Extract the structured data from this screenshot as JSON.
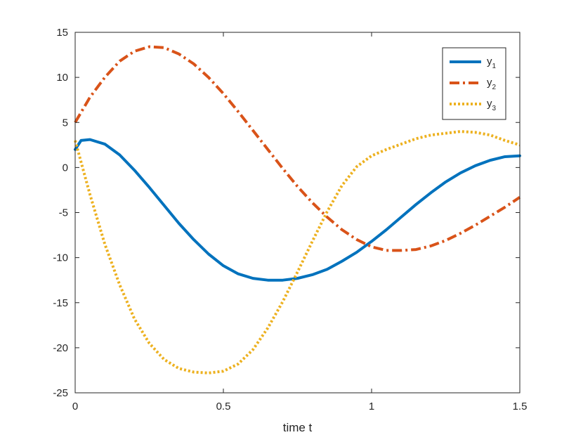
{
  "chart_data": {
    "type": "line",
    "xlabel": "time t",
    "ylabel": "",
    "title": "",
    "xlim": [
      0,
      1.5
    ],
    "ylim": [
      -25,
      15
    ],
    "xticks": [
      0,
      0.5,
      1,
      1.5
    ],
    "xtick_labels": [
      "0",
      "0.5",
      "1",
      "1.5"
    ],
    "yticks": [
      -25,
      -20,
      -15,
      -10,
      -5,
      0,
      5,
      10,
      15
    ],
    "ytick_labels": [
      "-25",
      "-20",
      "-15",
      "-10",
      "-5",
      "0",
      "5",
      "10",
      "15"
    ],
    "grid": false,
    "legend_position": "top-right",
    "series": [
      {
        "name": "y",
        "subscript": "1",
        "color": "#0072BD",
        "line_style": "solid",
        "x": [
          0,
          0.02,
          0.05,
          0.1,
          0.15,
          0.2,
          0.25,
          0.3,
          0.35,
          0.4,
          0.45,
          0.5,
          0.55,
          0.6,
          0.65,
          0.7,
          0.75,
          0.8,
          0.85,
          0.9,
          0.95,
          1.0,
          1.05,
          1.1,
          1.15,
          1.2,
          1.25,
          1.3,
          1.35,
          1.4,
          1.45,
          1.5
        ],
        "y": [
          2.0,
          3.0,
          3.1,
          2.6,
          1.4,
          -0.3,
          -2.2,
          -4.2,
          -6.2,
          -8.0,
          -9.6,
          -10.9,
          -11.8,
          -12.3,
          -12.5,
          -12.5,
          -12.3,
          -11.9,
          -11.3,
          -10.4,
          -9.4,
          -8.2,
          -6.9,
          -5.5,
          -4.1,
          -2.8,
          -1.6,
          -0.6,
          0.2,
          0.8,
          1.2,
          1.3
        ]
      },
      {
        "name": "y",
        "subscript": "2",
        "color": "#D95319",
        "line_style": "dashdot",
        "x": [
          0,
          0.05,
          0.1,
          0.15,
          0.2,
          0.25,
          0.3,
          0.35,
          0.4,
          0.45,
          0.5,
          0.55,
          0.6,
          0.65,
          0.7,
          0.75,
          0.8,
          0.85,
          0.9,
          0.95,
          1.0,
          1.05,
          1.1,
          1.15,
          1.2,
          1.25,
          1.3,
          1.35,
          1.4,
          1.45,
          1.5
        ],
        "y": [
          5.0,
          7.8,
          10.0,
          11.8,
          12.9,
          13.4,
          13.3,
          12.6,
          11.5,
          10.0,
          8.2,
          6.2,
          4.1,
          2.0,
          -0.1,
          -2.1,
          -3.9,
          -5.5,
          -6.9,
          -8.0,
          -8.8,
          -9.2,
          -9.2,
          -9.1,
          -8.7,
          -8.1,
          -7.3,
          -6.4,
          -5.4,
          -4.4,
          -3.3
        ]
      },
      {
        "name": "y",
        "subscript": "3",
        "color": "#EDB120",
        "line_style": "dotted",
        "x": [
          0,
          0.05,
          0.1,
          0.15,
          0.2,
          0.25,
          0.3,
          0.35,
          0.4,
          0.45,
          0.5,
          0.55,
          0.6,
          0.65,
          0.7,
          0.75,
          0.8,
          0.85,
          0.9,
          0.95,
          1.0,
          1.05,
          1.1,
          1.15,
          1.2,
          1.25,
          1.3,
          1.35,
          1.4,
          1.45,
          1.5
        ],
        "y": [
          3.0,
          -3.0,
          -8.5,
          -13.0,
          -16.8,
          -19.5,
          -21.3,
          -22.3,
          -22.7,
          -22.8,
          -22.6,
          -21.8,
          -20.2,
          -17.8,
          -14.9,
          -11.6,
          -8.2,
          -4.9,
          -2.0,
          0.1,
          1.3,
          2.0,
          2.6,
          3.2,
          3.6,
          3.8,
          4.0,
          3.9,
          3.6,
          3.0,
          2.5
        ]
      }
    ]
  }
}
